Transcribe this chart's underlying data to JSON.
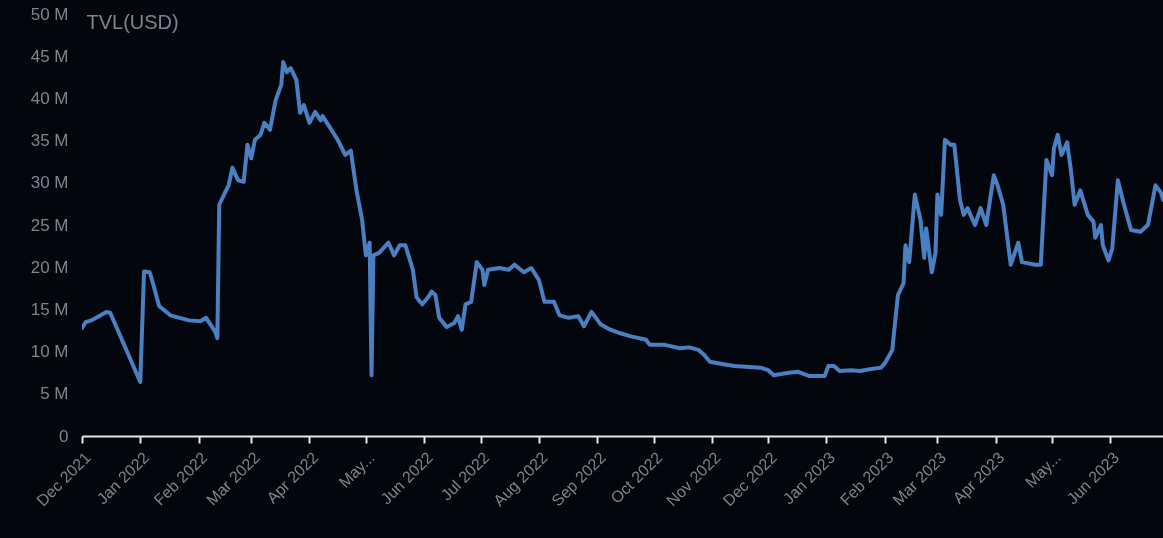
{
  "chart_data": {
    "type": "line",
    "ylabel": "TVL(USD)",
    "x": [
      "2021-12-01",
      "2021-12-03",
      "2021-12-06",
      "2021-12-10",
      "2021-12-14",
      "2021-12-16",
      "2022-01-01",
      "2022-01-03",
      "2022-01-06",
      "2022-01-08",
      "2022-01-11",
      "2022-01-17",
      "2022-01-22",
      "2022-01-27",
      "2022-02-02",
      "2022-02-05",
      "2022-02-10",
      "2022-02-11",
      "2022-02-12",
      "2022-02-15",
      "2022-02-17",
      "2022-02-19",
      "2022-02-22",
      "2022-02-25",
      "2022-02-27",
      "2022-03-01",
      "2022-03-03",
      "2022-03-06",
      "2022-03-08",
      "2022-03-11",
      "2022-03-14",
      "2022-03-17",
      "2022-03-18",
      "2022-03-20",
      "2022-03-22",
      "2022-03-25",
      "2022-03-27",
      "2022-03-29",
      "2022-04-01",
      "2022-04-04",
      "2022-04-07",
      "2022-04-08",
      "2022-04-12",
      "2022-04-16",
      "2022-04-20",
      "2022-04-23",
      "2022-04-26",
      "2022-04-29",
      "2022-05-01",
      "2022-05-03",
      "2022-05-04",
      "2022-05-05",
      "2022-05-08",
      "2022-05-13",
      "2022-05-16",
      "2022-05-19",
      "2022-05-22",
      "2022-05-26",
      "2022-05-28",
      "2022-05-31",
      "2022-06-03",
      "2022-06-05",
      "2022-06-07",
      "2022-06-09",
      "2022-06-13",
      "2022-06-17",
      "2022-06-19",
      "2022-06-21",
      "2022-06-23",
      "2022-06-26",
      "2022-06-29",
      "2022-07-02",
      "2022-07-03",
      "2022-07-05",
      "2022-07-11",
      "2022-07-16",
      "2022-07-19",
      "2022-07-24",
      "2022-07-28",
      "2022-08-01",
      "2022-08-04",
      "2022-08-09",
      "2022-08-12",
      "2022-08-17",
      "2022-08-22",
      "2022-08-25",
      "2022-08-29",
      "2022-09-03",
      "2022-09-08",
      "2022-09-13",
      "2022-09-19",
      "2022-09-27",
      "2022-09-29",
      "2022-10-07",
      "2022-10-15",
      "2022-10-20",
      "2022-10-25",
      "2022-10-28",
      "2022-10-31",
      "2022-11-05",
      "2022-11-13",
      "2022-11-27",
      "2022-12-01",
      "2022-12-04",
      "2022-12-12",
      "2022-12-17",
      "2022-12-23",
      "2022-12-31",
      "2023-01-02",
      "2023-01-05",
      "2023-01-08",
      "2023-01-14",
      "2023-01-19",
      "2023-01-24",
      "2023-01-30",
      "2023-02-01",
      "2023-02-05",
      "2023-02-08",
      "2023-02-11",
      "2023-02-12",
      "2023-02-14",
      "2023-02-17",
      "2023-02-20",
      "2023-02-22",
      "2023-02-23",
      "2023-02-26",
      "2023-02-28",
      "2023-03-01",
      "2023-03-03",
      "2023-03-05",
      "2023-03-08",
      "2023-03-10",
      "2023-03-13",
      "2023-03-15",
      "2023-03-17",
      "2023-03-21",
      "2023-03-24",
      "2023-03-27",
      "2023-03-29",
      "2023-03-31",
      "2023-04-02",
      "2023-04-05",
      "2023-04-09",
      "2023-04-13",
      "2023-04-15",
      "2023-04-22",
      "2023-04-25",
      "2023-04-28",
      "2023-05-01",
      "2023-05-02",
      "2023-05-04",
      "2023-05-06",
      "2023-05-09",
      "2023-05-11",
      "2023-05-13",
      "2023-05-16",
      "2023-05-20",
      "2023-05-23",
      "2023-05-24",
      "2023-05-27",
      "2023-05-28",
      "2023-05-31",
      "2023-06-02",
      "2023-06-05",
      "2023-06-08",
      "2023-06-12",
      "2023-06-17",
      "2023-06-21",
      "2023-06-25",
      "2023-06-28",
      "2023-06-29"
    ],
    "series": [
      {
        "color": "#4a7fc1",
        "values": [
          12.8,
          13.5,
          13.7,
          14.2,
          14.7,
          14.6,
          6.4,
          19.5,
          19.4,
          17.9,
          15.4,
          14.3,
          14.0,
          13.7,
          13.6,
          14.0,
          12.3,
          11.6,
          27.4,
          28.8,
          29.7,
          31.8,
          30.3,
          30.1,
          34.5,
          32.9,
          35.1,
          35.7,
          37.1,
          36.3,
          39.8,
          41.6,
          44.3,
          43.1,
          43.6,
          42.2,
          38.3,
          39.2,
          37.1,
          38.4,
          37.4,
          37.9,
          36.5,
          35.1,
          33.3,
          33.8,
          29.1,
          25.6,
          21.4,
          22.9,
          7.2,
          21.4,
          21.7,
          22.9,
          21.4,
          22.6,
          22.6,
          19.7,
          16.4,
          15.6,
          16.4,
          17.1,
          16.7,
          14.0,
          12.9,
          13.4,
          14.2,
          12.6,
          15.6,
          15.9,
          20.6,
          19.7,
          17.9,
          19.7,
          19.9,
          19.7,
          20.3,
          19.4,
          19.9,
          18.5,
          15.9,
          15.9,
          14.3,
          14.0,
          14.2,
          13.0,
          14.7,
          13.2,
          12.6,
          12.2,
          11.8,
          11.4,
          10.8,
          10.8,
          10.4,
          10.5,
          10.2,
          9.6,
          8.8,
          8.6,
          8.3,
          8.1,
          7.8,
          7.2,
          7.5,
          7.6,
          7.1,
          7.1,
          8.3,
          8.3,
          7.7,
          7.8,
          7.7,
          7.9,
          8.1,
          8.6,
          10.2,
          16.7,
          18.1,
          22.6,
          20.6,
          28.6,
          25.6,
          21.1,
          24.6,
          19.4,
          21.7,
          28.6,
          26.2,
          35.1,
          34.5,
          34.5,
          28.0,
          26.2,
          27.0,
          25.0,
          27.0,
          25.0,
          28.0,
          30.9,
          29.7,
          27.4,
          20.3,
          22.9,
          20.6,
          20.3,
          20.3,
          32.7,
          30.9,
          34.1,
          35.7,
          33.3,
          34.8,
          31.5,
          27.4,
          29.1,
          26.2,
          25.4,
          23.5,
          25.0,
          22.6,
          20.8,
          22.2,
          30.3,
          27.6,
          24.4,
          24.2,
          25.0,
          29.7,
          28.8,
          28.0
        ]
      }
    ],
    "xlim": [
      "2021-12-01",
      "2023-06-29"
    ],
    "xticks": [
      {
        "value": "2021-12-01",
        "label": "Dec 2021"
      },
      {
        "value": "2022-01-01",
        "label": "Jan 2022"
      },
      {
        "value": "2022-02-01",
        "label": "Feb 2022"
      },
      {
        "value": "2022-03-01",
        "label": "Mar 2022"
      },
      {
        "value": "2022-04-01",
        "label": "Apr 2022"
      },
      {
        "value": "2022-05-01",
        "label": "May..."
      },
      {
        "value": "2022-06-01",
        "label": "Jun 2022"
      },
      {
        "value": "2022-07-01",
        "label": "Jul 2022"
      },
      {
        "value": "2022-08-01",
        "label": "Aug 2022"
      },
      {
        "value": "2022-09-01",
        "label": "Sep 2022"
      },
      {
        "value": "2022-10-01",
        "label": "Oct 2022"
      },
      {
        "value": "2022-11-01",
        "label": "Nov 2022"
      },
      {
        "value": "2022-12-01",
        "label": "Dec 2022"
      },
      {
        "value": "2023-01-01",
        "label": "Jan 2023"
      },
      {
        "value": "2023-02-01",
        "label": "Feb 2023"
      },
      {
        "value": "2023-03-01",
        "label": "Mar 2023"
      },
      {
        "value": "2023-04-01",
        "label": "Apr 2023"
      },
      {
        "value": "2023-05-01",
        "label": "May..."
      },
      {
        "value": "2023-06-01",
        "label": "Jun 2023"
      }
    ],
    "ylim": [
      0,
      50
    ],
    "yticks": [
      0,
      {
        "value": 5,
        "label": "5 M"
      },
      {
        "value": 10,
        "label": "10 M"
      },
      {
        "value": 15,
        "label": "15 M"
      },
      {
        "value": 20,
        "label": "20 M"
      },
      {
        "value": 25,
        "label": "25 M"
      },
      {
        "value": 30,
        "label": "30 M"
      },
      {
        "value": 35,
        "label": "35 M"
      },
      {
        "value": 40,
        "label": "40 M"
      },
      {
        "value": 45,
        "label": "45 M"
      },
      {
        "value": 50,
        "label": "50 M"
      }
    ],
    "grid": false,
    "marker": "none",
    "line_style": "solid"
  }
}
